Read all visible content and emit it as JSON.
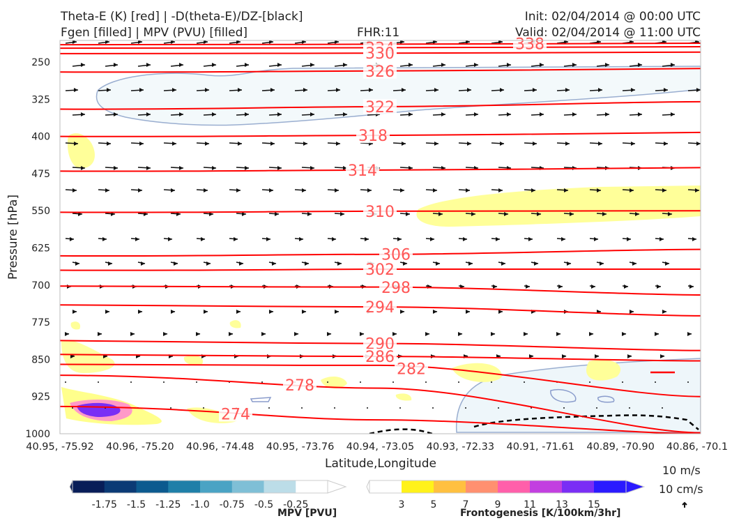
{
  "header": {
    "title_line1": "Theta-E (K) [red] | -D(theta-E)/DZ-[black]",
    "title_line2": "Fgen [filled] | MPV (PVU) [filled]",
    "fhr": "FHR:11",
    "init": "Init: 02/04/2014 @ 00:00 UTC",
    "valid": "Valid: 02/04/2014 @ 11:00 UTC"
  },
  "chart_data": {
    "type": "cross-section",
    "xlabel": "Latitude,Longitude",
    "ylabel": "Pressure [hPa]",
    "ylim": [
      1000,
      200
    ],
    "x_tick_labels": [
      "40.95, -75.92",
      "40.96, -75.20",
      "40.96, -74.48",
      "40.95, -73.76",
      "40.94, -73.05",
      "40.93, -72.33",
      "40.91, -71.61",
      "40.89, -70.90",
      "40.86, -70.1"
    ],
    "y_ticks": [
      250,
      325,
      400,
      475,
      550,
      625,
      700,
      775,
      850,
      925,
      1000
    ],
    "theta_e_contours": [
      {
        "label": "338",
        "pressure": [
          215,
          214,
          212
        ]
      },
      {
        "label": "334",
        "pressure": [
          222,
          221,
          219
        ]
      },
      {
        "label": "330",
        "pressure": [
          233,
          232,
          230
        ]
      },
      {
        "label": "326",
        "pressure": [
          270,
          268,
          263
        ]
      },
      {
        "label": "322",
        "pressure": [
          345,
          340,
          330
        ]
      },
      {
        "label": "318",
        "pressure": [
          400,
          398,
          392
        ]
      },
      {
        "label": "314",
        "pressure": [
          470,
          468,
          463
        ]
      },
      {
        "label": "310",
        "pressure": [
          553,
          551,
          550
        ]
      },
      {
        "label": "306",
        "pressure": [
          641,
          638,
          628
        ]
      },
      {
        "label": "302",
        "pressure": [
          670,
          668,
          668
        ]
      },
      {
        "label": "298",
        "pressure": [
          702,
          704,
          720
        ]
      },
      {
        "label": "294",
        "pressure": [
          740,
          744,
          762
        ]
      },
      {
        "label": "290",
        "pressure": [
          812,
          818,
          832
        ]
      },
      {
        "label": "286",
        "pressure": [
          840,
          844,
          853
        ]
      },
      {
        "label": "282",
        "pressure": [
          860,
          862,
          925
        ]
      },
      {
        "label": "278",
        "pressure": [
          882,
          908,
          998
        ]
      },
      {
        "label": "274",
        "pressure": [
          945,
          972,
          1000
        ]
      }
    ],
    "mpv_colorbar": {
      "label": "MPV [PVU]",
      "ticks": [
        "-1.75",
        "-1.5",
        "-1.25",
        "-1.0",
        "-0.75",
        "-0.5",
        "-0.25"
      ],
      "colors": [
        "#081d58",
        "#0b3a75",
        "#0c5a8f",
        "#1f7fa8",
        "#4aa3c4",
        "#7fbfd6",
        "#bcdde8",
        "#ffffff"
      ]
    },
    "fgen_colorbar": {
      "label": "Frontogenesis [K/100km/3hr]",
      "ticks": [
        "3",
        "5",
        "7",
        "9",
        "11",
        "13",
        "15"
      ],
      "colors": [
        "#ffffff",
        "#fff21a",
        "#ffc040",
        "#ff9070",
        "#ff5faa",
        "#c23fe0",
        "#7a2ef5",
        "#2a1aff"
      ]
    },
    "wind_reference": [
      "10 m/s",
      "10 cm/s"
    ]
  }
}
